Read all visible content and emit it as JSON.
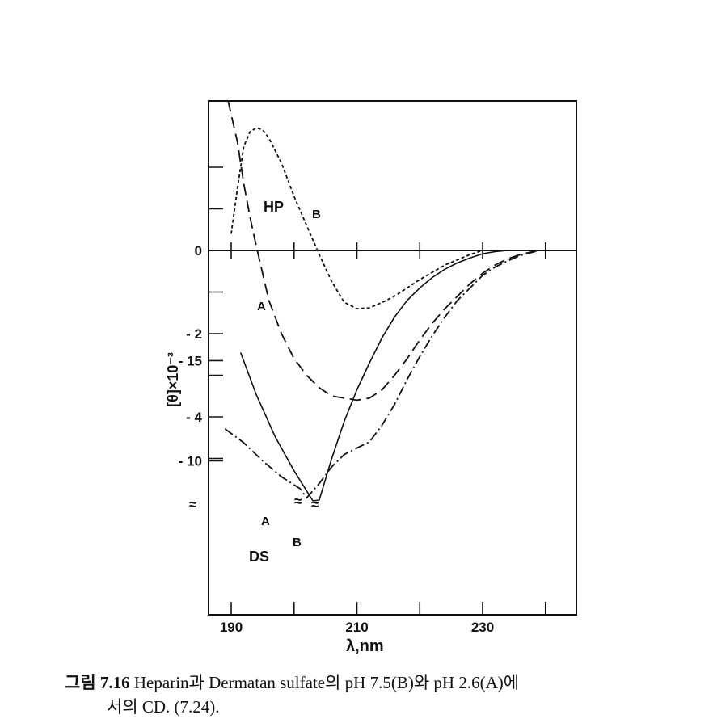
{
  "chart_data": {
    "type": "line",
    "xlabel": "λ,nm",
    "ylabel": "[θ]×10⁻³",
    "x_ticks": [
      "190",
      "210",
      "230"
    ],
    "y_ticks": [
      "0",
      "- 2",
      "- 4",
      "- 10",
      "- 15"
    ],
    "axis_break_marks": [
      "≈",
      "≈",
      "≈"
    ],
    "panel_labels": [
      "HP",
      "DS"
    ],
    "grid": false,
    "series": [
      {
        "name": "HP B",
        "label": "B",
        "style": "dotted",
        "x": [
          190,
          191,
          192,
          193,
          194,
          195,
          196,
          198,
          200,
          202,
          204,
          206,
          208,
          210,
          212,
          214,
          216,
          218,
          220,
          224,
          228,
          230
        ],
        "y": [
          0.4,
          1.5,
          2.5,
          2.85,
          2.95,
          2.9,
          2.7,
          2.1,
          1.3,
          0.6,
          -0.1,
          -0.75,
          -1.25,
          -1.4,
          -1.38,
          -1.25,
          -1.1,
          -0.9,
          -0.7,
          -0.35,
          -0.1,
          0
        ]
      },
      {
        "name": "HP A",
        "label": "A",
        "style": "dashed",
        "x": [
          189.5,
          191,
          192,
          193,
          194,
          196,
          198,
          200,
          202,
          204,
          206,
          208,
          210,
          212,
          214,
          216,
          218,
          220,
          222,
          224,
          226,
          228,
          230,
          232,
          234,
          236,
          238,
          239
        ],
        "y": [
          3.6,
          2.6,
          1.6,
          0.8,
          0.1,
          -1.2,
          -2.0,
          -2.6,
          -3.0,
          -3.3,
          -3.5,
          -3.55,
          -3.6,
          -3.55,
          -3.35,
          -3.0,
          -2.6,
          -2.15,
          -1.75,
          -1.4,
          -1.1,
          -0.8,
          -0.55,
          -0.35,
          -0.2,
          -0.1,
          -0.03,
          0
        ]
      },
      {
        "name": "DS A",
        "label": "A",
        "style": "dashdot",
        "x": [
          189,
          192,
          195,
          198,
          201,
          202,
          204,
          206,
          208,
          210,
          212,
          214,
          216,
          218,
          220,
          222,
          224,
          226,
          228,
          230,
          232,
          234,
          236,
          238,
          239
        ],
        "y": [
          -11.6,
          -10.9,
          -10.0,
          -9.2,
          -8.6,
          -5.95,
          -5.6,
          -5.2,
          -4.9,
          -4.75,
          -4.6,
          -4.2,
          -3.7,
          -3.1,
          -2.55,
          -2.05,
          -1.6,
          -1.2,
          -0.9,
          -0.6,
          -0.4,
          -0.25,
          -0.12,
          -0.04,
          0
        ]
      },
      {
        "name": "DS B",
        "label": "B",
        "style": "solid",
        "x": [
          191.5,
          194,
          197,
          200,
          203,
          204,
          206,
          208,
          210,
          212,
          214,
          216,
          218,
          220,
          222,
          224,
          226,
          228,
          230,
          232,
          234
        ],
        "y": [
          -15.4,
          -13.3,
          -11.2,
          -9.5,
          -8.0,
          -6.0,
          -5.0,
          -4.1,
          -3.35,
          -2.7,
          -2.1,
          -1.6,
          -1.2,
          -0.9,
          -0.65,
          -0.45,
          -0.3,
          -0.18,
          -0.08,
          -0.03,
          0
        ]
      }
    ]
  },
  "caption": {
    "figure_label": "그림",
    "figure_number": "7.16",
    "text_line1": "Heparin과 Dermatan sulfate의  pH 7.5(B)와  pH 2.6(A)에",
    "text_line2": "서의 CD.  (7.24)."
  }
}
